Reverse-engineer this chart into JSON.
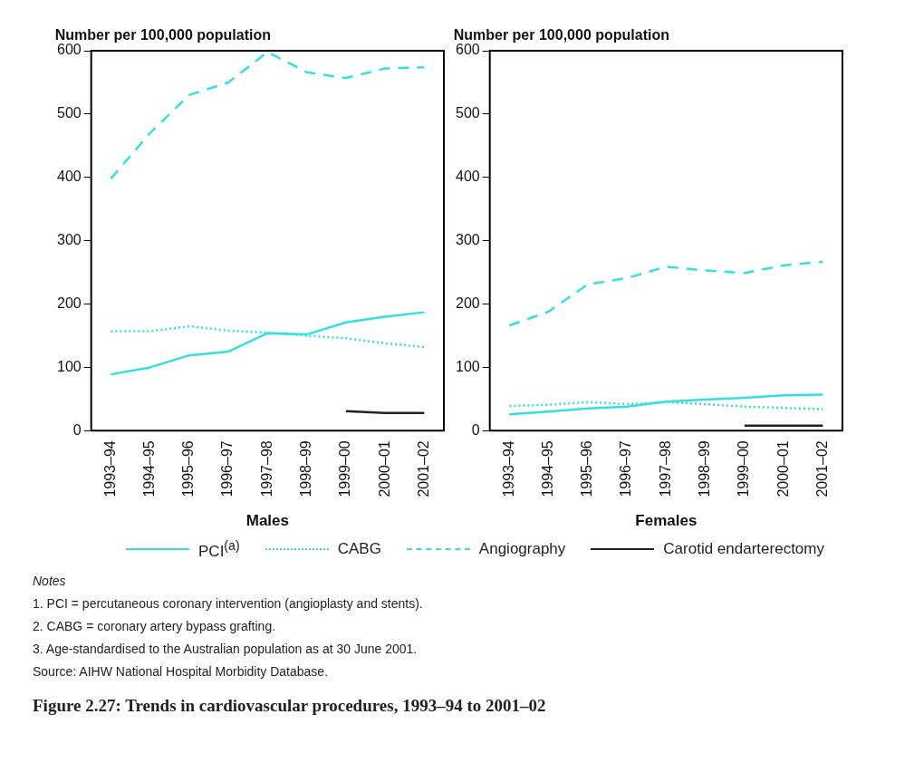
{
  "chart_data": [
    {
      "type": "line",
      "ylabel": "Number per 100,000 population",
      "xlabel": "Males",
      "categories": [
        "1993–94",
        "1994–95",
        "1995–96",
        "1996–97",
        "1997–98",
        "1998–99",
        "1999–00",
        "2000–01",
        "2001–02"
      ],
      "ylim": [
        0,
        600
      ],
      "yticks": [
        0,
        100,
        200,
        300,
        400,
        500,
        600
      ],
      "marker": "none",
      "legend": "bottom",
      "series": [
        {
          "name": "PCI$^{(a)}$",
          "color": "#33e0e0",
          "line_style": "solid",
          "values": [
            89,
            100,
            119,
            125,
            154,
            152,
            171,
            180,
            187
          ]
        },
        {
          "name": "CABG",
          "color": "#33e0e0",
          "line_style": "dotted",
          "values": [
            157,
            157,
            165,
            158,
            155,
            150,
            146,
            138,
            132
          ]
        },
        {
          "name": "Angiography",
          "color": "#33e0e0",
          "line_style": "dashed",
          "values": [
            398,
            470,
            530,
            550,
            598,
            566,
            557,
            572,
            574
          ]
        },
        {
          "name": "Carotid endarterectomy",
          "color": "#222222",
          "line_style": "solid",
          "values": [
            null,
            null,
            null,
            null,
            null,
            null,
            31,
            28,
            28
          ]
        }
      ],
      "title": "Figure 2.27: Trends in cardiovascular procedures, 1993–94 to 2001–02",
      "annotations": [
        "Notes",
        "1.  PCI = percutaneous coronary intervention (angioplasty and stents).",
        "2.  CABG = coronary artery bypass grafting.",
        "3.  Age-standardised to the Australian population as at 30 June 2001.",
        "Source: AIHW National Hospital Morbidity Database."
      ]
    },
    {
      "type": "line",
      "ylabel": "Number per 100,000 population",
      "xlabel": "Females",
      "categories": [
        "1993–94",
        "1994–95",
        "1995–96",
        "1996–97",
        "1997–98",
        "1998–99",
        "1999–00",
        "2000–01",
        "2001–02"
      ],
      "ylim": [
        0,
        600
      ],
      "yticks": [
        0,
        100,
        200,
        300,
        400,
        500,
        600
      ],
      "marker": "none",
      "series": [
        {
          "color": "#33e0e0",
          "line_style": "solid",
          "values": [
            26,
            30,
            35,
            38,
            46,
            49,
            52,
            56,
            57
          ]
        },
        {
          "color": "#33e0e0",
          "line_style": "dotted",
          "values": [
            39,
            41,
            45,
            42,
            45,
            42,
            38,
            36,
            34
          ]
        },
        {
          "color": "#33e0e0",
          "line_style": "dashed",
          "values": [
            166,
            188,
            231,
            241,
            259,
            253,
            249,
            261,
            267
          ]
        },
        {
          "color": "#222222",
          "line_style": "solid",
          "values": [
            null,
            null,
            null,
            null,
            null,
            null,
            8,
            8,
            8
          ]
        }
      ]
    }
  ]
}
